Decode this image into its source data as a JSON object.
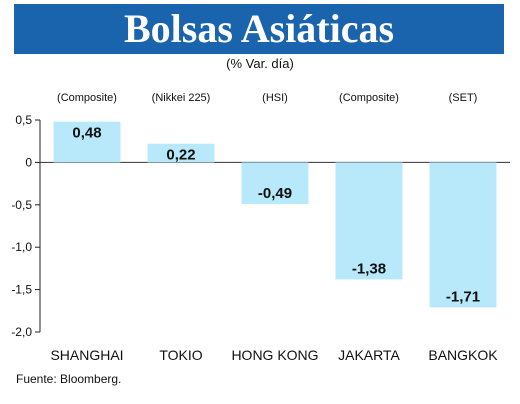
{
  "chart_data": {
    "type": "bar",
    "title": "Bolsas Asiáticas",
    "subtitle": "(% Var. día)",
    "categories": [
      "SHANGHAI",
      "TOKIO",
      "HONG KONG",
      "JAKARTA",
      "BANGKOK"
    ],
    "indices": [
      "(Composite)",
      "(Nikkei 225)",
      "(HSI)",
      "(Composite)",
      "(SET)"
    ],
    "values": [
      0.48,
      0.22,
      -0.49,
      -1.38,
      -1.71
    ],
    "value_labels": [
      "0,48",
      "0,22",
      "-0,49",
      "-1,38",
      "-1,71"
    ],
    "ylim": [
      -2.0,
      0.5
    ],
    "yticks": [
      0.5,
      0,
      -0.5,
      -1.0,
      -1.5,
      -2.0
    ],
    "ytick_labels": [
      "0,5",
      "0",
      "-0,5",
      "-1,0",
      "-1,5",
      "-2,0"
    ],
    "bar_color": "#b7e9fb",
    "source": "Fuente: Bloomberg."
  }
}
